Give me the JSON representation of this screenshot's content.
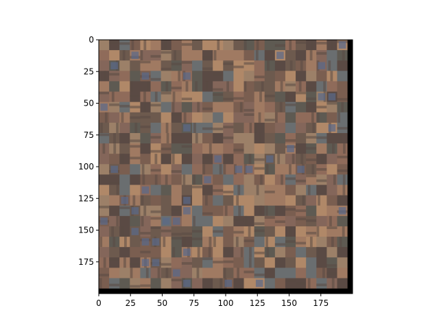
{
  "chart_data": {
    "type": "image",
    "title": "",
    "xlabel": "",
    "ylabel": "",
    "xlim": [
      0,
      200
    ],
    "ylim": [
      200,
      0
    ],
    "y_axis_inverted": true,
    "grid": false,
    "x_ticks": [
      0,
      25,
      50,
      75,
      100,
      125,
      150,
      175
    ],
    "y_ticks": [
      0,
      25,
      50,
      75,
      100,
      125,
      150,
      175
    ],
    "image_extent_x": [
      0,
      196
    ],
    "image_extent_y": [
      0,
      196
    ],
    "image_description_palette": [
      "#8f6b5a",
      "#7a5e50",
      "#6d5a4e",
      "#a07a62",
      "#5e5a52",
      "#84665a",
      "#9c8068",
      "#6a6e70",
      "#b08868",
      "#5a4a44"
    ],
    "padding_color": "#000000"
  }
}
